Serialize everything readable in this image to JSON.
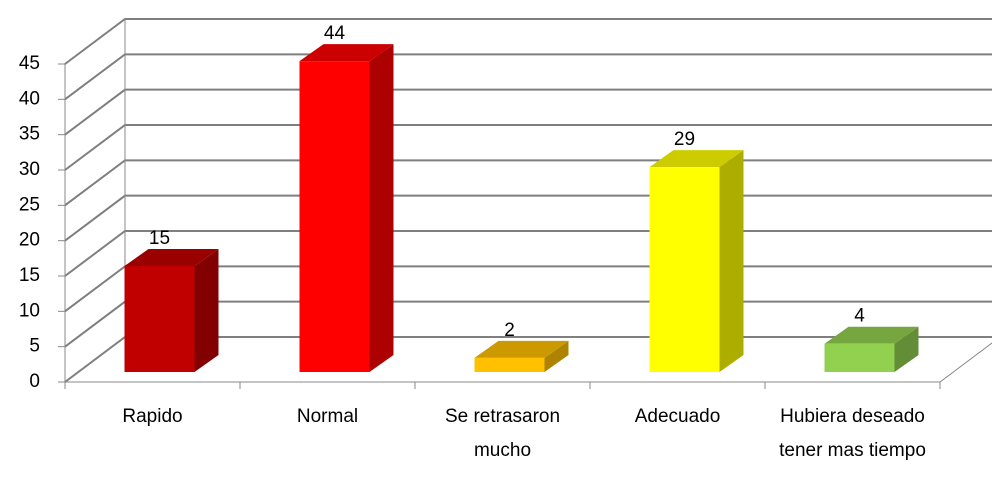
{
  "chart_data": {
    "type": "bar3d",
    "categories": [
      "Rapido",
      "Normal",
      "Se retrasaron mucho",
      "Adecuado",
      "Hubiera deseado tener mas tiempo"
    ],
    "values": [
      15,
      44,
      2,
      29,
      4
    ],
    "colors": [
      "#c00000",
      "#ff0000",
      "#ffc000",
      "#ffff00",
      "#92d050"
    ],
    "ylim": [
      0,
      45
    ],
    "yticks": [
      0,
      5,
      10,
      15,
      20,
      25,
      30,
      35,
      40,
      45
    ],
    "grid": true
  }
}
